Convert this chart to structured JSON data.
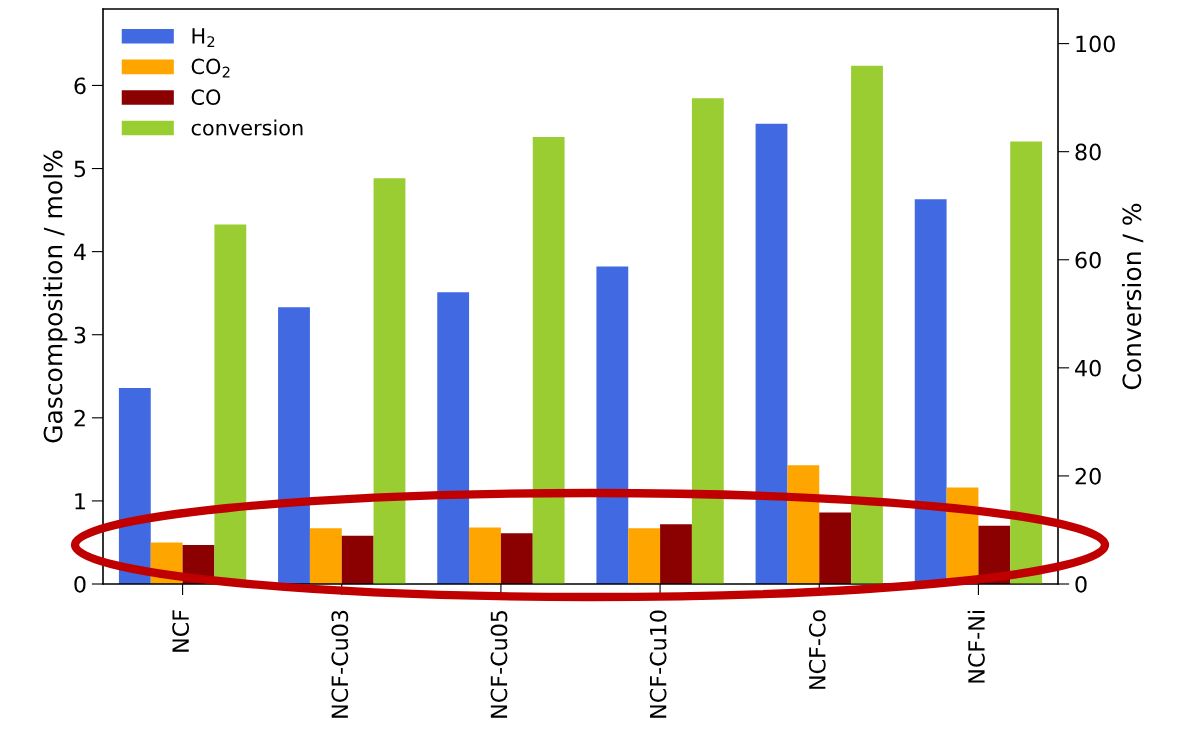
{
  "chart_data": {
    "type": "bar",
    "categories": [
      "NCF",
      "NCF-Cu03",
      "NCF-Cu05",
      "NCF-Cu10",
      "NCF-Co",
      "NCF-Ni"
    ],
    "ylabel": "Gascomposition / mol%",
    "y2label": "Conversion / %",
    "ylim": [
      0,
      6.92
    ],
    "yticks": [
      0,
      1,
      2,
      3,
      4,
      5,
      6
    ],
    "y2lim": [
      0,
      106.4
    ],
    "y2ticks": [
      0,
      20,
      40,
      60,
      80,
      100
    ],
    "legend": "top left",
    "grid": false,
    "series": [
      {
        "name": "H$_{2}$",
        "color": "#4169e1",
        "values": [
          2.36,
          3.33,
          3.51,
          3.82,
          5.54,
          4.63
        ]
      },
      {
        "name": "CO$_{2}$",
        "color": "#ffa500",
        "values": [
          0.5,
          0.67,
          0.68,
          0.67,
          1.43,
          1.16
        ]
      },
      {
        "name": "CO",
        "color": "#8b0000",
        "values": [
          0.47,
          0.58,
          0.61,
          0.72,
          0.86,
          0.7
        ]
      },
      {
        "name": "conversion",
        "color": "#9acd32",
        "axis": "y2",
        "values": [
          66.5,
          75.1,
          82.7,
          89.9,
          95.9,
          81.9
        ]
      }
    ]
  }
}
